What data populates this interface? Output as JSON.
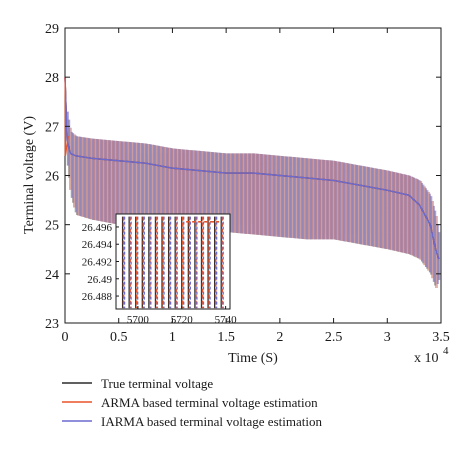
{
  "chart_data": {
    "type": "line",
    "xlabel": "Time (S)",
    "ylabel": "Terminal voltage (V)",
    "x_multiplier_label": "x 10",
    "x_multiplier_exp": "4",
    "xlim": [
      0,
      3.5
    ],
    "ylim": [
      23,
      29
    ],
    "xticks": [
      "0",
      "0.5",
      "1",
      "1.5",
      "2",
      "2.5",
      "3",
      "3.5"
    ],
    "yticks": [
      "23",
      "24",
      "25",
      "26",
      "27",
      "28",
      "29"
    ],
    "grid": false,
    "legend_position": "bottom",
    "x": [
      0.0,
      0.02,
      0.05,
      0.1,
      0.25,
      0.5,
      0.75,
      1.0,
      1.25,
      1.5,
      1.75,
      2.0,
      2.25,
      2.5,
      2.75,
      3.0,
      3.2,
      3.3,
      3.4,
      3.45,
      3.48
    ],
    "envelope_upper": [
      28.0,
      27.3,
      26.9,
      26.8,
      26.75,
      26.7,
      26.65,
      26.55,
      26.5,
      26.45,
      26.45,
      26.4,
      26.35,
      26.3,
      26.2,
      26.1,
      26.0,
      25.9,
      25.6,
      25.2,
      24.8
    ],
    "envelope_lower": [
      28.0,
      26.2,
      25.6,
      25.2,
      25.1,
      25.0,
      25.0,
      24.95,
      24.9,
      24.85,
      24.8,
      24.75,
      24.7,
      24.7,
      24.6,
      24.5,
      24.4,
      24.3,
      24.0,
      23.7,
      23.9
    ],
    "series": [
      {
        "name": "True terminal voltage",
        "color": "#2b2b2b",
        "values": [
          28.0,
          26.7,
          26.45,
          26.4,
          26.35,
          26.3,
          26.25,
          26.15,
          26.1,
          26.05,
          26.05,
          26.0,
          25.95,
          25.9,
          25.8,
          25.7,
          25.6,
          25.4,
          25.0,
          24.5,
          24.3
        ]
      },
      {
        "name": "ARMA based terminal voltage estimation",
        "color": "#e8542a",
        "values": [
          28.0,
          26.7,
          26.45,
          26.4,
          26.35,
          26.3,
          26.25,
          26.15,
          26.1,
          26.05,
          26.05,
          26.0,
          25.95,
          25.9,
          25.8,
          25.7,
          25.6,
          25.4,
          25.0,
          24.5,
          24.3
        ]
      },
      {
        "name": "IARMA based terminal voltage estimation",
        "color": "#6a6ad0",
        "values": [
          28.0,
          26.7,
          26.45,
          26.4,
          26.35,
          26.3,
          26.25,
          26.15,
          26.1,
          26.05,
          26.05,
          26.0,
          25.95,
          25.9,
          25.8,
          25.7,
          25.6,
          25.4,
          25.0,
          24.5,
          24.3
        ]
      }
    ],
    "inset": {
      "xlim": [
        5690,
        5742
      ],
      "ylim": [
        26.4865,
        26.4975
      ],
      "xticks": [
        "5700",
        "5720",
        "5740"
      ],
      "yticks": [
        "26.488",
        "26.49",
        "26.492",
        "26.494",
        "26.496"
      ]
    }
  }
}
